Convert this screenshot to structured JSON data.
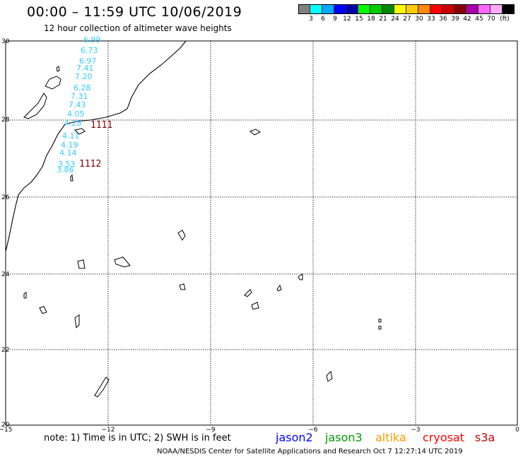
{
  "header": {
    "title": "00:00 – 11:59 UTC 10/06/2019",
    "subtitle": "12 hour collection of altimeter wave heights"
  },
  "colorbar": {
    "unit": "(ft)",
    "colors": [
      "#808080",
      "#00ffff",
      "#00aaff",
      "#0000ff",
      "#0000aa",
      "#00ff00",
      "#00cc00",
      "#008800",
      "#ffff00",
      "#ffcc00",
      "#ff8800",
      "#ff0000",
      "#cc0000",
      "#880000",
      "#aa00aa",
      "#ff66ff",
      "#ffaaff",
      "#000000"
    ],
    "labels": [
      "3",
      "6",
      "9",
      "12",
      "15",
      "18",
      "21",
      "24",
      "27",
      "30",
      "33",
      "36",
      "39",
      "42",
      "45",
      "70"
    ]
  },
  "map": {
    "lat_labels": [
      "30",
      "28",
      "26",
      "24",
      "22",
      "20"
    ],
    "lon_labels": [
      "−15",
      "−12",
      "−9",
      "−6",
      "−3",
      "0"
    ]
  },
  "track": {
    "color": "#33ccff",
    "values": [
      "6.99",
      "6.73",
      "6.97",
      "7.41",
      "7.20",
      "6.28",
      "7.31",
      "7.43",
      "4.05",
      "4.28",
      "4.11",
      "4.19",
      "4.14",
      "3.53",
      "3.86"
    ]
  },
  "track_ids": [
    "1111",
    "1112"
  ],
  "footer": {
    "note": "note: 1) Time is in UTC; 2) SWH is in feet",
    "satellites": [
      {
        "name": "jason2",
        "color": "#0000ff"
      },
      {
        "name": "jason3",
        "color": "#009900"
      },
      {
        "name": "altika",
        "color": "#ff9900"
      },
      {
        "name": "cryosat",
        "color": "#ff0000"
      },
      {
        "name": "s3a",
        "color": "#cc0000"
      }
    ],
    "credit": "NOAA/NESDIS Center for Satellite Applications and Research    Oct  7 12:27:14 UTC 2019"
  }
}
